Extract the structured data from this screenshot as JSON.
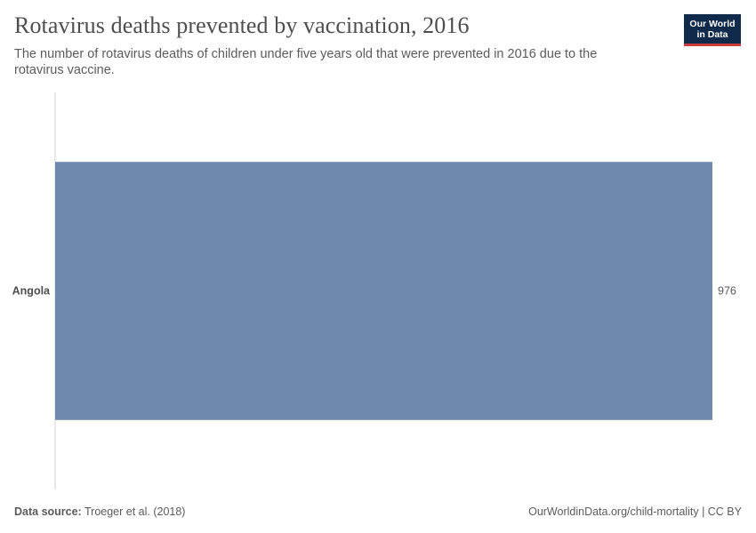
{
  "header": {
    "title": "Rotavirus deaths prevented by vaccination, 2016",
    "subtitle": "The number of rotavirus deaths of children under five years old that were prevented in 2016 due to the rotavirus vaccine."
  },
  "logo": {
    "line1": "Our World",
    "line2": "in Data",
    "bg_color": "#0f2a4a",
    "accent_color": "#c93c3c"
  },
  "footer": {
    "source_label": "Data source:",
    "source_text": "Troeger et al. (2018)",
    "right_text": "OurWorldinData.org/child-mortality | CC BY"
  },
  "chart_data": {
    "type": "bar",
    "orientation": "horizontal",
    "categories": [
      "Angola"
    ],
    "values": [
      976
    ],
    "data_labels": [
      "976"
    ],
    "xlim": [
      0,
      976
    ],
    "bar_color": "#6f88b0",
    "axis_color": "#d0d0d0",
    "grid": false
  }
}
